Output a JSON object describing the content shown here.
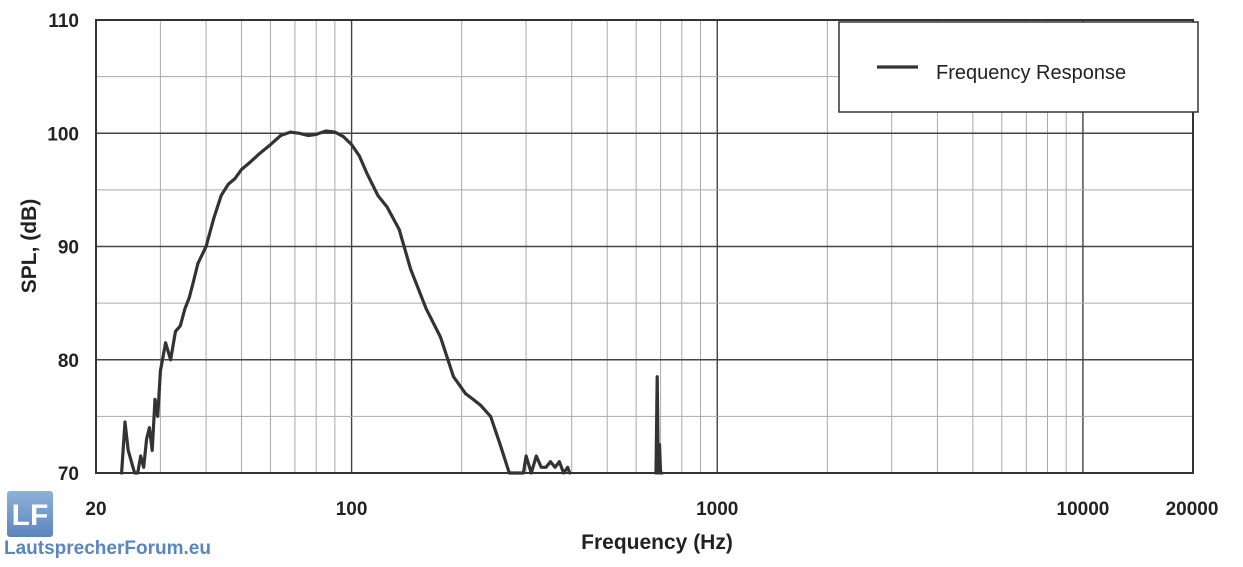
{
  "chart_data": {
    "type": "line",
    "xlabel": "Frequency (Hz)",
    "ylabel": "SPL, (dB)",
    "xscale": "log",
    "xlim": [
      20,
      20000
    ],
    "ylim": [
      70,
      110
    ],
    "x_ticks": [
      20,
      100,
      1000,
      10000,
      20000
    ],
    "y_ticks": [
      70,
      80,
      90,
      100,
      110
    ],
    "grid": true,
    "legend": {
      "position": "top-right",
      "entries": [
        "Frequency Response"
      ]
    },
    "series": [
      {
        "name": "Frequency Response",
        "color": "#333333",
        "x": [
          23.5,
          24,
          24.5,
          25,
          25.5,
          26,
          26.5,
          27,
          27.5,
          28,
          28.5,
          29,
          29.5,
          30,
          31,
          32,
          33,
          34,
          35,
          36,
          37,
          38,
          40,
          42,
          44,
          46,
          48,
          50,
          53,
          56,
          60,
          64,
          68,
          72,
          76,
          80,
          85,
          90,
          95,
          100,
          105,
          110,
          118,
          125,
          135,
          145,
          160,
          175,
          190,
          205,
          215,
          225,
          240,
          255,
          270,
          285,
          295,
          300,
          310,
          320,
          330,
          340,
          350,
          360,
          370,
          380,
          390,
          395,
          680,
          685,
          690,
          695,
          700,
          705
        ],
        "y": [
          70,
          74.5,
          72,
          71,
          70,
          70,
          71.5,
          70.5,
          73,
          74,
          72,
          76.5,
          75,
          79,
          81.5,
          80,
          82.5,
          83,
          84.5,
          85.5,
          87,
          88.5,
          90,
          92.5,
          94.5,
          95.5,
          96,
          96.8,
          97.5,
          98.2,
          99,
          99.8,
          100.1,
          100,
          99.8,
          99.9,
          100.2,
          100.1,
          99.7,
          99,
          98,
          96.5,
          94.5,
          93.5,
          91.5,
          88,
          84.5,
          82,
          78.5,
          77,
          76.5,
          76,
          75,
          72.5,
          70,
          70,
          70,
          71.5,
          70,
          71.5,
          70.5,
          70.5,
          71,
          70.5,
          71,
          70,
          70.5,
          70,
          70,
          78.5,
          70,
          72.5,
          70,
          70
        ]
      }
    ]
  },
  "watermark": {
    "logo_letters": "LF",
    "site": "LautsprecherForum.eu"
  }
}
